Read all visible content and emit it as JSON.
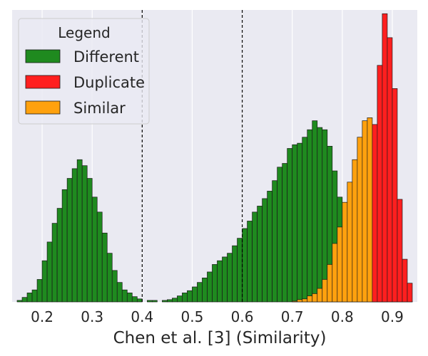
{
  "chart_data": {
    "type": "histogram",
    "xlabel": "Chen et al. [3] (Similarity)",
    "ylabel": "",
    "xlim": [
      0.14,
      0.95
    ],
    "xticks": [
      0.2,
      0.3,
      0.4,
      0.5,
      0.6,
      0.7,
      0.8,
      0.9
    ],
    "xtick_labels": [
      "0.2",
      "0.3",
      "0.4",
      "0.5",
      "0.6",
      "0.7",
      "0.8",
      "0.9"
    ],
    "ylim": [
      0,
      390
    ],
    "grid": "vertical",
    "bin_width": 0.01,
    "reference_lines_x": [
      0.4,
      0.6
    ],
    "legend": {
      "title": "Legend",
      "position": "top-left",
      "entries": [
        "Different",
        "Duplicate",
        "Similar"
      ]
    },
    "series": [
      {
        "name": "Different",
        "color": "#1f8a1f",
        "bins": [
          [
            0.15,
            2
          ],
          [
            0.16,
            6
          ],
          [
            0.17,
            12
          ],
          [
            0.18,
            16
          ],
          [
            0.19,
            30
          ],
          [
            0.2,
            55
          ],
          [
            0.21,
            80
          ],
          [
            0.22,
            105
          ],
          [
            0.23,
            125
          ],
          [
            0.24,
            150
          ],
          [
            0.25,
            165
          ],
          [
            0.26,
            178
          ],
          [
            0.27,
            190
          ],
          [
            0.28,
            182
          ],
          [
            0.29,
            165
          ],
          [
            0.3,
            140
          ],
          [
            0.31,
            120
          ],
          [
            0.32,
            92
          ],
          [
            0.33,
            65
          ],
          [
            0.34,
            42
          ],
          [
            0.35,
            26
          ],
          [
            0.36,
            16
          ],
          [
            0.37,
            12
          ],
          [
            0.38,
            7
          ],
          [
            0.39,
            4
          ],
          [
            0.41,
            2
          ],
          [
            0.42,
            2
          ],
          [
            0.44,
            2
          ],
          [
            0.45,
            3
          ],
          [
            0.46,
            5
          ],
          [
            0.47,
            8
          ],
          [
            0.48,
            12
          ],
          [
            0.49,
            15
          ],
          [
            0.5,
            20
          ],
          [
            0.51,
            26
          ],
          [
            0.52,
            32
          ],
          [
            0.53,
            40
          ],
          [
            0.54,
            50
          ],
          [
            0.55,
            55
          ],
          [
            0.56,
            60
          ],
          [
            0.57,
            65
          ],
          [
            0.58,
            75
          ],
          [
            0.59,
            85
          ],
          [
            0.6,
            98
          ],
          [
            0.61,
            108
          ],
          [
            0.62,
            120
          ],
          [
            0.63,
            128
          ],
          [
            0.64,
            138
          ],
          [
            0.65,
            148
          ],
          [
            0.66,
            162
          ],
          [
            0.67,
            180
          ],
          [
            0.68,
            185
          ],
          [
            0.69,
            205
          ],
          [
            0.7,
            210
          ],
          [
            0.71,
            212
          ],
          [
            0.72,
            220
          ],
          [
            0.73,
            230
          ],
          [
            0.74,
            242
          ],
          [
            0.75,
            233
          ],
          [
            0.76,
            230
          ],
          [
            0.77,
            208
          ],
          [
            0.78,
            175
          ],
          [
            0.79,
            140
          ],
          [
            0.8,
            104
          ],
          [
            0.81,
            76
          ],
          [
            0.82,
            58
          ],
          [
            0.83,
            44
          ],
          [
            0.84,
            20
          ],
          [
            0.85,
            14
          ],
          [
            0.86,
            6
          ],
          [
            0.87,
            3
          ],
          [
            0.88,
            1
          ]
        ]
      },
      {
        "name": "Duplicate",
        "color": "#ff1f1f",
        "bins": [
          [
            0.86,
            237
          ],
          [
            0.87,
            316
          ],
          [
            0.88,
            385
          ],
          [
            0.89,
            353
          ],
          [
            0.9,
            285
          ],
          [
            0.91,
            137
          ],
          [
            0.92,
            57
          ],
          [
            0.93,
            25
          ]
        ]
      },
      {
        "name": "Similar",
        "color": "#ffa10e",
        "bins": [
          [
            0.7,
            1
          ],
          [
            0.71,
            3
          ],
          [
            0.72,
            4
          ],
          [
            0.73,
            8
          ],
          [
            0.74,
            11
          ],
          [
            0.75,
            18
          ],
          [
            0.76,
            30
          ],
          [
            0.77,
            50
          ],
          [
            0.78,
            78
          ],
          [
            0.79,
            100
          ],
          [
            0.8,
            133
          ],
          [
            0.81,
            160
          ],
          [
            0.82,
            190
          ],
          [
            0.83,
            220
          ],
          [
            0.84,
            242
          ],
          [
            0.85,
            246
          ],
          [
            0.86,
            223
          ],
          [
            0.87,
            175
          ],
          [
            0.88,
            130
          ],
          [
            0.89,
            75
          ],
          [
            0.9,
            33
          ],
          [
            0.91,
            10
          ],
          [
            0.92,
            4
          ],
          [
            0.93,
            1
          ]
        ]
      }
    ]
  }
}
